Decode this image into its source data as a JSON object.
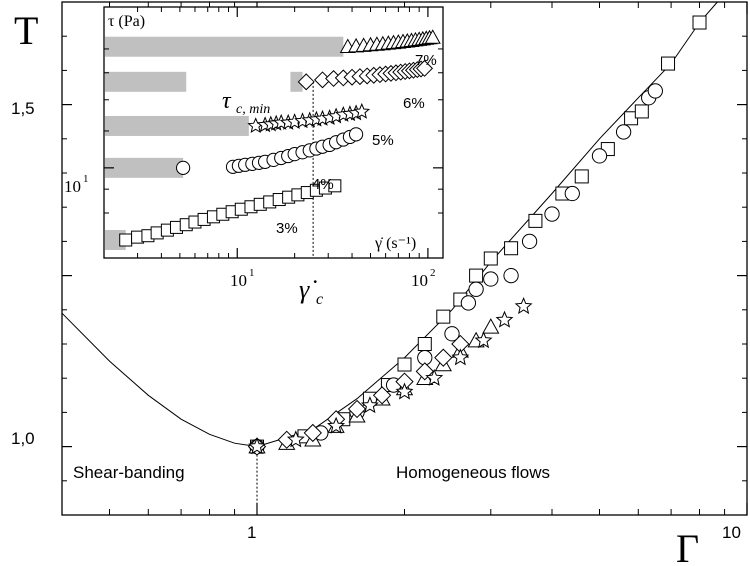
{
  "chart_data": [
    {
      "type": "scatter",
      "role": "main",
      "xlabel": "Γ",
      "ylabel": "T",
      "x_scale": "log",
      "xlim": [
        0.4,
        10
      ],
      "ylim": [
        0.9,
        1.65
      ],
      "x_ticks": [
        {
          "value": 1,
          "label": "1"
        },
        {
          "value": 10,
          "label": "10"
        }
      ],
      "y_ticks": [
        {
          "value": 1.0,
          "label": "1,0"
        },
        {
          "value": 1.5,
          "label": "1,5"
        }
      ],
      "grid": false,
      "annotations": [
        "Shear-banding",
        "Homogeneous flows"
      ],
      "fit_curve": {
        "x": [
          0.4,
          0.5,
          0.6,
          0.7,
          0.8,
          0.9,
          1.0,
          1.3,
          1.6,
          2.0,
          2.5,
          3.0,
          4.0,
          5.0,
          6.0,
          7.0,
          8.0,
          8.7
        ],
        "y": [
          1.195,
          1.125,
          1.075,
          1.04,
          1.018,
          1.005,
          1.0,
          1.025,
          1.07,
          1.13,
          1.2,
          1.27,
          1.37,
          1.45,
          1.51,
          1.56,
          1.62,
          1.65
        ]
      },
      "series": [
        {
          "marker": "square",
          "points": [
            [
              1.0,
              1.0
            ],
            [
              1.25,
              1.015
            ],
            [
              1.5,
              1.04
            ],
            [
              1.7,
              1.07
            ],
            [
              1.85,
              1.09
            ],
            [
              2.0,
              1.12
            ],
            [
              2.2,
              1.15
            ],
            [
              2.4,
              1.19
            ],
            [
              2.6,
              1.215
            ],
            [
              2.8,
              1.25
            ],
            [
              3.0,
              1.275
            ],
            [
              3.3,
              1.29
            ],
            [
              3.7,
              1.33
            ],
            [
              4.2,
              1.37
            ],
            [
              4.6,
              1.395
            ],
            [
              5.2,
              1.435
            ],
            [
              5.8,
              1.48
            ],
            [
              6.1,
              1.49
            ],
            [
              6.9,
              1.56
            ],
            [
              8.0,
              1.62
            ]
          ]
        },
        {
          "marker": "circle",
          "points": [
            [
              1.0,
              1.0
            ],
            [
              1.35,
              1.02
            ],
            [
              1.6,
              1.05
            ],
            [
              1.9,
              1.09
            ],
            [
              2.2,
              1.13
            ],
            [
              2.5,
              1.165
            ],
            [
              2.7,
              1.21
            ],
            [
              2.8,
              1.23
            ],
            [
              3.0,
              1.245
            ],
            [
              3.3,
              1.25
            ],
            [
              3.6,
              1.3
            ],
            [
              4.0,
              1.34
            ],
            [
              4.4,
              1.37
            ],
            [
              5.0,
              1.425
            ],
            [
              5.6,
              1.46
            ],
            [
              6.3,
              1.51
            ],
            [
              6.5,
              1.52
            ]
          ]
        },
        {
          "marker": "triangle",
          "points": [
            [
              1.0,
              1.0
            ],
            [
              1.15,
              1.005
            ],
            [
              1.3,
              1.01
            ],
            [
              1.45,
              1.03
            ],
            [
              1.6,
              1.045
            ],
            [
              1.8,
              1.07
            ],
            [
              2.0,
              1.085
            ],
            [
              2.2,
              1.1
            ],
            [
              2.4,
              1.12
            ],
            [
              2.6,
              1.14
            ],
            [
              2.8,
              1.155
            ],
            [
              3.0,
              1.175
            ]
          ]
        },
        {
          "marker": "diamond",
          "points": [
            [
              1.0,
              1.0
            ],
            [
              1.15,
              1.01
            ],
            [
              1.3,
              1.02
            ],
            [
              1.45,
              1.04
            ],
            [
              1.6,
              1.055
            ],
            [
              1.8,
              1.075
            ],
            [
              2.0,
              1.095
            ],
            [
              2.2,
              1.11
            ],
            [
              2.4,
              1.13
            ],
            [
              2.6,
              1.15
            ]
          ]
        },
        {
          "marker": "star",
          "points": [
            [
              1.0,
              1.0
            ],
            [
              1.2,
              1.01
            ],
            [
              1.45,
              1.03
            ],
            [
              1.7,
              1.06
            ],
            [
              2.0,
              1.08
            ],
            [
              2.3,
              1.1
            ],
            [
              2.6,
              1.13
            ],
            [
              2.9,
              1.155
            ],
            [
              3.2,
              1.185
            ],
            [
              3.5,
              1.205
            ]
          ]
        }
      ]
    },
    {
      "type": "scatter",
      "role": "inset",
      "xlabel": "γ̇ (s⁻¹)",
      "ylabel": "τ (Pa)",
      "x_scale": "log",
      "y_scale": "log",
      "xlim": [
        2,
        120
      ],
      "x_ticks": [
        {
          "value": 10,
          "base": "10",
          "exp": "1"
        },
        {
          "value": 100,
          "base": "10",
          "exp": "2"
        }
      ],
      "y_ticks": [
        {
          "label_base": "10",
          "label_exp": "1"
        }
      ],
      "annotations": {
        "tau_min": "τ",
        "tau_min_sub": "c, min",
        "gamma_c": "γ̇",
        "gamma_c_sub": "c",
        "vline_x": 25
      },
      "series": [
        {
          "name": "3%",
          "marker": "square",
          "band_x": [
            2,
            2.6
          ],
          "x": [
            2.6,
            3.0,
            3.4,
            3.8,
            4.3,
            4.8,
            5.4,
            6.0,
            6.7,
            7.5,
            8.4,
            9.4,
            10.5,
            11.8,
            13.2,
            14.8,
            16.6,
            18.6,
            20.8,
            23.3,
            26,
            29,
            32.5
          ],
          "y": [
            7.0,
            7.1,
            7.15,
            7.25,
            7.35,
            7.45,
            7.55,
            7.65,
            7.75,
            7.85,
            7.95,
            8.05,
            8.15,
            8.25,
            8.35,
            8.45,
            8.55,
            8.65,
            8.75,
            8.85,
            8.95,
            9.05,
            9.15
          ]
        },
        {
          "name": "4%",
          "marker": "circle",
          "band_x": [
            2,
            5.2
          ],
          "x": [
            5.2,
            9.5,
            10.2,
            11,
            12,
            13,
            14,
            15.5,
            17,
            18.5,
            20,
            22,
            24,
            26,
            28,
            30.5,
            33,
            36,
            39,
            42
          ],
          "y": [
            10.0,
            10.05,
            10.1,
            10.15,
            10.2,
            10.25,
            10.3,
            10.4,
            10.5,
            10.6,
            10.7,
            10.8,
            10.9,
            11.0,
            11.1,
            11.2,
            11.35,
            11.5,
            11.65,
            11.8
          ]
        },
        {
          "name": "5%",
          "marker": "star",
          "band_x": [
            2,
            11.5
          ],
          "x": [
            12.5,
            14,
            15,
            16,
            17,
            18.5,
            20,
            22,
            24,
            26,
            28,
            30.5,
            33,
            36,
            39,
            42,
            45
          ],
          "y": [
            12.3,
            12.35,
            12.4,
            12.45,
            12.5,
            12.5,
            12.55,
            12.6,
            12.65,
            12.7,
            12.75,
            12.8,
            12.9,
            13.0,
            13.05,
            13.1,
            13.2
          ]
        },
        {
          "name": "6%",
          "marker": "diamond",
          "band_x": [
            [
              2,
              5.4
            ],
            [
              19,
              22
            ]
          ],
          "x": [
            23,
            28,
            32,
            36,
            40,
            44,
            48,
            52,
            56,
            60,
            64,
            68,
            72,
            76,
            80,
            84,
            88,
            92,
            96
          ],
          "y": [
            15.3,
            15.45,
            15.55,
            15.6,
            15.65,
            15.7,
            15.75,
            15.8,
            15.85,
            15.9,
            15.95,
            16.0,
            16.05,
            16.1,
            16.15,
            16.2,
            16.25,
            16.3,
            16.35
          ]
        },
        {
          "name": "7%",
          "marker": "triangle",
          "band_x": [
            2,
            36
          ],
          "x": [
            38,
            42,
            46,
            50,
            54,
            58,
            62,
            66,
            70,
            74,
            78,
            82,
            86,
            90,
            94,
            98,
            102,
            106
          ],
          "y": [
            18.2,
            18.25,
            18.3,
            18.35,
            18.4,
            18.45,
            18.5,
            18.55,
            18.6,
            18.65,
            18.7,
            18.75,
            18.8,
            18.85,
            18.9,
            18.95,
            19.0,
            19.05
          ]
        }
      ]
    }
  ]
}
